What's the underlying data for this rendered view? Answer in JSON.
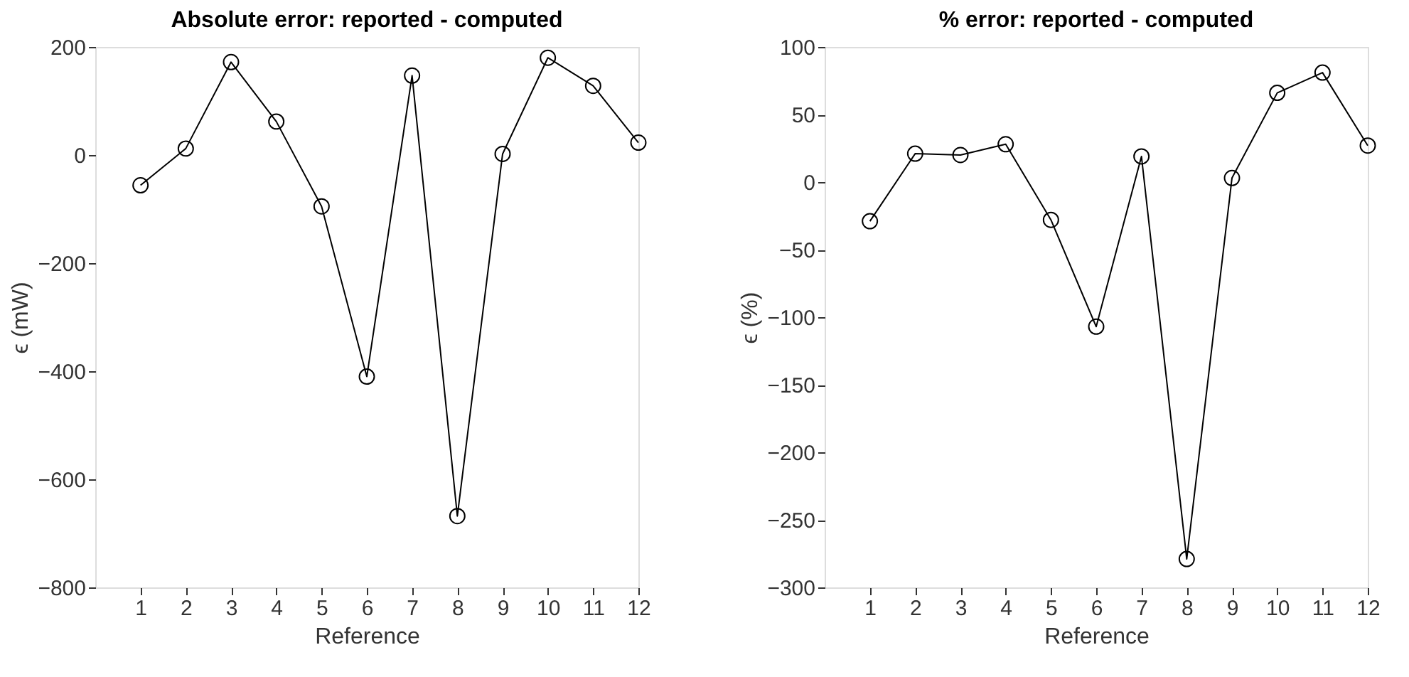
{
  "chart_data": [
    {
      "type": "line",
      "title": "Absolute error: reported - computed",
      "xlabel": "Reference",
      "ylabel": "ϵ (mW)",
      "x": [
        1,
        2,
        3,
        4,
        5,
        6,
        7,
        8,
        9,
        10,
        11,
        12
      ],
      "series": [
        {
          "color": "#000000",
          "values": [
            -56,
            12,
            172,
            62,
            -95,
            -410,
            147,
            -668,
            2,
            180,
            128,
            23
          ]
        }
      ],
      "xlim": [
        0,
        12
      ],
      "xticks": [
        1,
        2,
        3,
        4,
        5,
        6,
        7,
        8,
        9,
        10,
        11,
        12
      ],
      "ylim": [
        -800,
        200
      ],
      "yticks": [
        -800,
        -600,
        -400,
        -200,
        0,
        200
      ],
      "marker": "circle",
      "line_style": "solid",
      "grid": false
    },
    {
      "type": "line",
      "title": "% error: reported - computed",
      "xlabel": "Reference",
      "ylabel": "ϵ (%)",
      "x": [
        1,
        2,
        3,
        4,
        5,
        6,
        7,
        8,
        9,
        10,
        11,
        12
      ],
      "series": [
        {
          "color": "#000000",
          "values": [
            -29,
            21,
            20,
            28,
            -28,
            -107,
            19,
            -279,
            3,
            66,
            81,
            27
          ]
        }
      ],
      "xlim": [
        0,
        12
      ],
      "xticks": [
        1,
        2,
        3,
        4,
        5,
        6,
        7,
        8,
        9,
        10,
        11,
        12
      ],
      "ylim": [
        -300,
        100
      ],
      "yticks": [
        -300,
        -250,
        -200,
        -150,
        -100,
        -50,
        0,
        50,
        100
      ],
      "marker": "circle",
      "line_style": "solid",
      "grid": false
    }
  ]
}
